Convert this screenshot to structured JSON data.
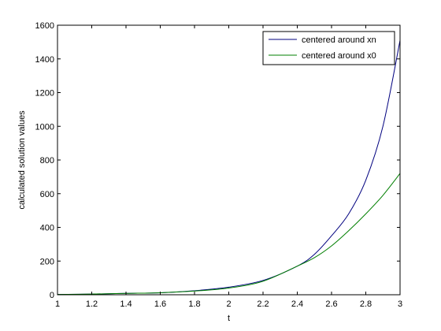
{
  "chart_data": {
    "type": "line",
    "title": "",
    "xlabel": "t",
    "ylabel": "calculated solution values",
    "xlim": [
      1,
      3
    ],
    "ylim": [
      0,
      1600
    ],
    "xticks": [
      1,
      1.2,
      1.4,
      1.6,
      1.8,
      2,
      2.2,
      2.4,
      2.6,
      2.8,
      3
    ],
    "xtick_labels": [
      "1",
      "1.2",
      "1.4",
      "1.6",
      "1.8",
      "2",
      "2.2",
      "2.4",
      "2.6",
      "2.8",
      "3"
    ],
    "yticks": [
      0,
      200,
      400,
      600,
      800,
      1000,
      1200,
      1400,
      1600
    ],
    "ytick_labels": [
      "0",
      "200",
      "400",
      "600",
      "800",
      "1000",
      "1200",
      "1400",
      "1600"
    ],
    "grid": false,
    "legend_position": "top-right",
    "series": [
      {
        "name": "centered around xn",
        "color": "#00007f",
        "x": [
          1,
          1.2,
          1.4,
          1.6,
          1.8,
          2,
          2.2,
          2.4,
          2.5,
          2.6,
          2.7,
          2.8,
          2.9,
          3
        ],
        "y": [
          2,
          4,
          8,
          12,
          24,
          45,
          85,
          170,
          240,
          350,
          480,
          680,
          1000,
          1510
        ]
      },
      {
        "name": "centered around x0",
        "color": "#007f00",
        "x": [
          1,
          1.2,
          1.4,
          1.6,
          1.8,
          2,
          2.2,
          2.4,
          2.5,
          2.6,
          2.7,
          2.8,
          2.9,
          3
        ],
        "y": [
          2,
          4,
          8,
          12,
          22,
          40,
          80,
          170,
          220,
          290,
          380,
          480,
          590,
          720
        ]
      }
    ]
  }
}
